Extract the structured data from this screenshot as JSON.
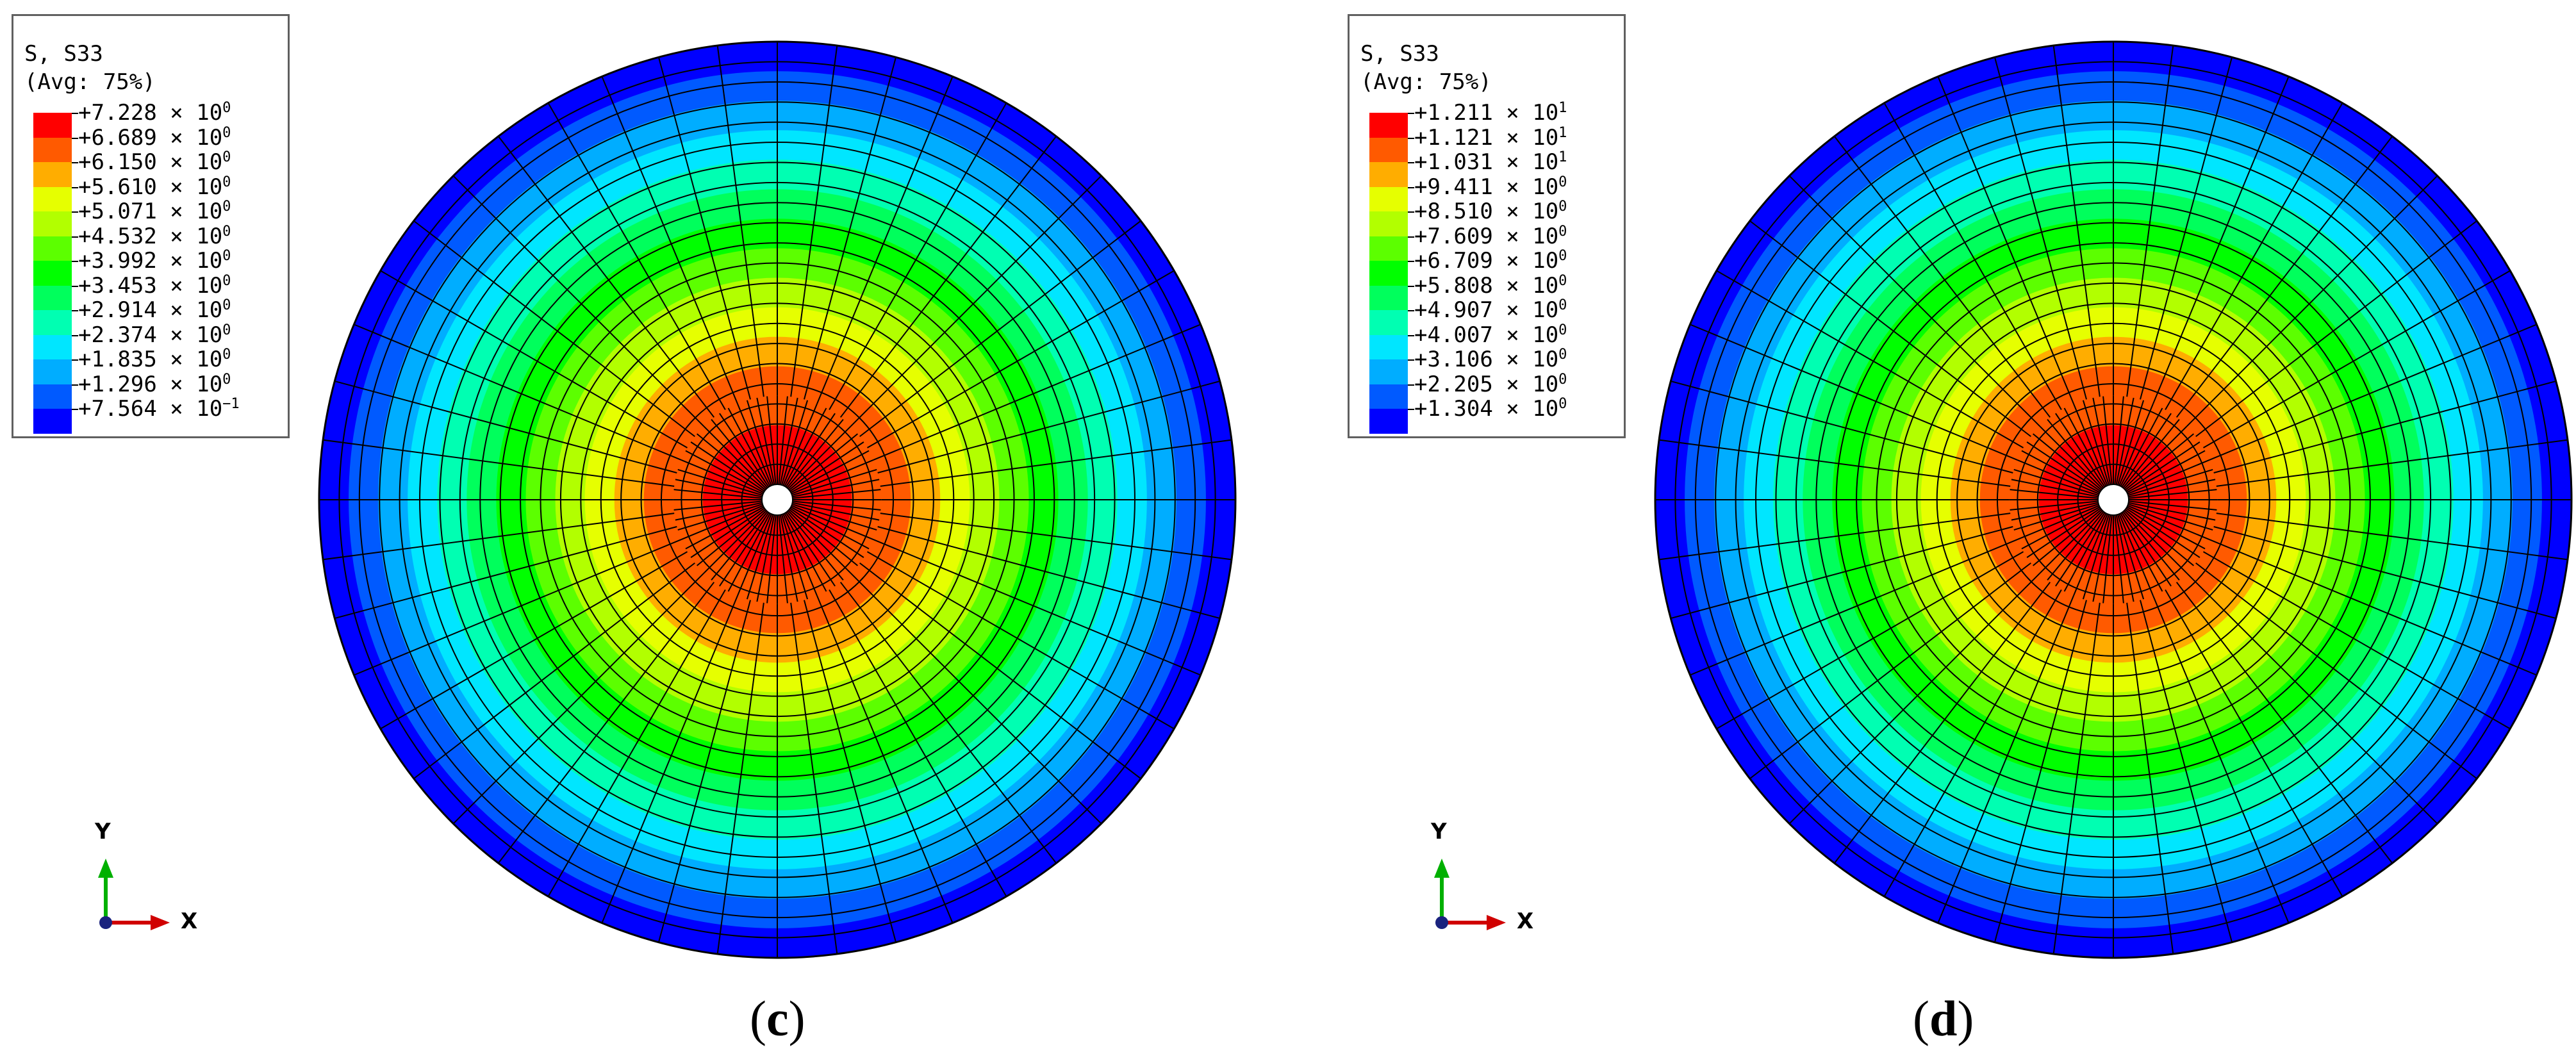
{
  "panels": [
    {
      "legend": {
        "title_line1": "S, S33",
        "title_line2": "(Avg: 75%)",
        "entries": [
          {
            "mantissa": "+7.228",
            "exponent": "0",
            "color": "#ff0000"
          },
          {
            "mantissa": "+6.689",
            "exponent": "0",
            "color": "#ff5a00"
          },
          {
            "mantissa": "+6.150",
            "exponent": "0",
            "color": "#ffad00"
          },
          {
            "mantissa": "+5.610",
            "exponent": "0",
            "color": "#e6ff00"
          },
          {
            "mantissa": "+5.071",
            "exponent": "0",
            "color": "#b2ff00"
          },
          {
            "mantissa": "+4.532",
            "exponent": "0",
            "color": "#5cff00"
          },
          {
            "mantissa": "+3.992",
            "exponent": "0",
            "color": "#00ff00"
          },
          {
            "mantissa": "+3.453",
            "exponent": "0",
            "color": "#00ff5c"
          },
          {
            "mantissa": "+2.914",
            "exponent": "0",
            "color": "#00ffb2"
          },
          {
            "mantissa": "+2.374",
            "exponent": "0",
            "color": "#00e6ff"
          },
          {
            "mantissa": "+1.835",
            "exponent": "0",
            "color": "#00adff"
          },
          {
            "mantissa": "+1.296",
            "exponent": "0",
            "color": "#005aff"
          },
          {
            "mantissa": "+7.564",
            "exponent": "−1",
            "color": "#0000ff"
          }
        ]
      },
      "rings": [
        "#ff0000",
        "#ff0000",
        "#ff5a00",
        "#ff5a00",
        "#ffad00",
        "#e6ff00",
        "#b2ff00",
        "#5cff00",
        "#00ff00",
        "#00ff5c",
        "#00ffb2",
        "#00e6ff",
        "#00adff",
        "#005aff",
        "#0000ff"
      ],
      "axes": {
        "y_label": "Y",
        "x_label": "X"
      },
      "caption": {
        "open": "(",
        "letter": "c",
        "close": ")"
      }
    },
    {
      "legend": {
        "title_line1": "S, S33",
        "title_line2": "(Avg: 75%)",
        "entries": [
          {
            "mantissa": "+1.211",
            "exponent": "1",
            "color": "#ff0000"
          },
          {
            "mantissa": "+1.121",
            "exponent": "1",
            "color": "#ff5a00"
          },
          {
            "mantissa": "+1.031",
            "exponent": "1",
            "color": "#ffad00"
          },
          {
            "mantissa": "+9.411",
            "exponent": "0",
            "color": "#e6ff00"
          },
          {
            "mantissa": "+8.510",
            "exponent": "0",
            "color": "#b2ff00"
          },
          {
            "mantissa": "+7.609",
            "exponent": "0",
            "color": "#5cff00"
          },
          {
            "mantissa": "+6.709",
            "exponent": "0",
            "color": "#00ff00"
          },
          {
            "mantissa": "+5.808",
            "exponent": "0",
            "color": "#00ff5c"
          },
          {
            "mantissa": "+4.907",
            "exponent": "0",
            "color": "#00ffb2"
          },
          {
            "mantissa": "+4.007",
            "exponent": "0",
            "color": "#00e6ff"
          },
          {
            "mantissa": "+3.106",
            "exponent": "0",
            "color": "#00adff"
          },
          {
            "mantissa": "+2.205",
            "exponent": "0",
            "color": "#005aff"
          },
          {
            "mantissa": "+1.304",
            "exponent": "0",
            "color": "#0000ff"
          }
        ]
      },
      "rings": [
        "#ff0000",
        "#ff0000",
        "#ff5a00",
        "#ff5a00",
        "#ffad00",
        "#e6ff00",
        "#b2ff00",
        "#5cff00",
        "#00ff00",
        "#00ff5c",
        "#00ffb2",
        "#00e6ff",
        "#00adff",
        "#005aff",
        "#0000ff"
      ],
      "axes": {
        "y_label": "Y",
        "x_label": "X"
      },
      "caption": {
        "open": "(",
        "letter": "d",
        "close": ")"
      }
    }
  ]
}
